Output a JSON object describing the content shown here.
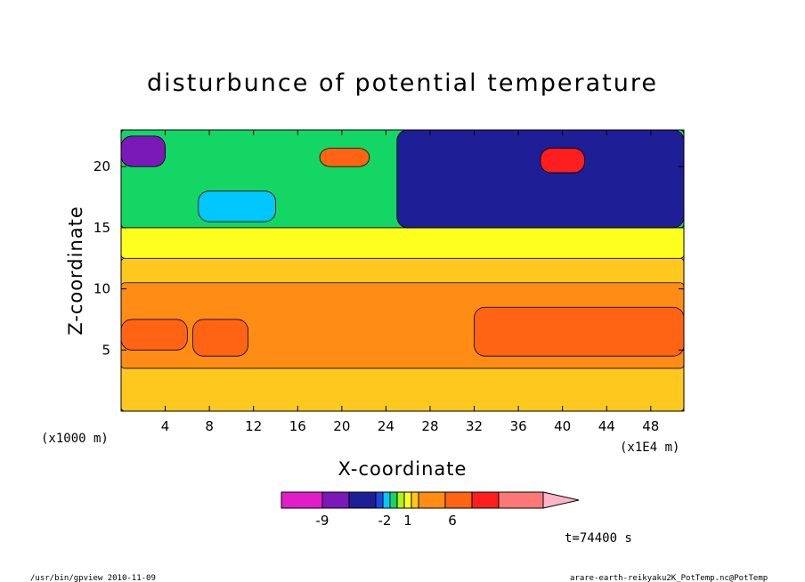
{
  "chart_data": {
    "type": "heatmap",
    "title": "disturbunce of potential temperature",
    "xlabel": "X-coordinate",
    "ylabel": "Z-coordinate",
    "x_unit_left": "(x1000 m)",
    "x_unit_right": "(x1E4 m)",
    "xlim": [
      0,
      51
    ],
    "ylim": [
      0,
      23
    ],
    "x_ticks": [
      "4",
      "8",
      "12",
      "16",
      "20",
      "24",
      "28",
      "32",
      "36",
      "40",
      "44",
      "48"
    ],
    "y_ticks": [
      "5",
      "10",
      "15",
      "20"
    ],
    "colorbar": {
      "colors": [
        "#e01ec8",
        "#7a18b8",
        "#1e1e96",
        "#1e46e6",
        "#00c8ff",
        "#14d664",
        "#b4f01e",
        "#ffff1e",
        "#ffc81e",
        "#ff8c14",
        "#ff6414",
        "#ff1e1e",
        "#ff7878",
        "#ffb4c8"
      ],
      "labels": [
        "-9",
        "-2",
        "1",
        "6"
      ]
    },
    "regions": [
      {
        "level": "yellow-orange",
        "x0": 0,
        "x1": 51,
        "z0": 0,
        "z1": 12.5
      },
      {
        "level": "orange",
        "x0": 0,
        "x1": 51,
        "z0": 3.5,
        "z1": 10.5
      },
      {
        "level": "dark-orange",
        "x0": 0,
        "x1": 6,
        "z0": 5,
        "z1": 7.5
      },
      {
        "level": "dark-orange",
        "x0": 6.5,
        "x1": 11.5,
        "z0": 4.5,
        "z1": 7.5
      },
      {
        "level": "dark-orange",
        "x0": 32,
        "x1": 51,
        "z0": 4.5,
        "z1": 8.5
      },
      {
        "level": "yellow",
        "x0": 0,
        "x1": 51,
        "z0": 12.5,
        "z1": 15.5
      },
      {
        "level": "green",
        "x0": 0,
        "x1": 51,
        "z0": 15,
        "z1": 23
      },
      {
        "level": "cyan",
        "x0": 7,
        "x1": 14,
        "z0": 15.5,
        "z1": 18
      },
      {
        "level": "blue",
        "x0": 25,
        "x1": 51,
        "z0": 15,
        "z1": 23
      },
      {
        "level": "purple",
        "x0": 0,
        "x1": 4,
        "z0": 20,
        "z1": 22.5
      },
      {
        "level": "dark-orange",
        "x0": 18,
        "x1": 22.5,
        "z0": 20,
        "z1": 21.5
      },
      {
        "level": "red",
        "x0": 38,
        "x1": 42,
        "z0": 19.5,
        "z1": 21.5
      }
    ]
  },
  "colorbar_title_time": "t=74400 s",
  "footer_left": "/usr/bin/gpview   2010-11-09",
  "footer_right": "arare-earth-reikyaku2K_PotTemp.nc@PotTemp"
}
